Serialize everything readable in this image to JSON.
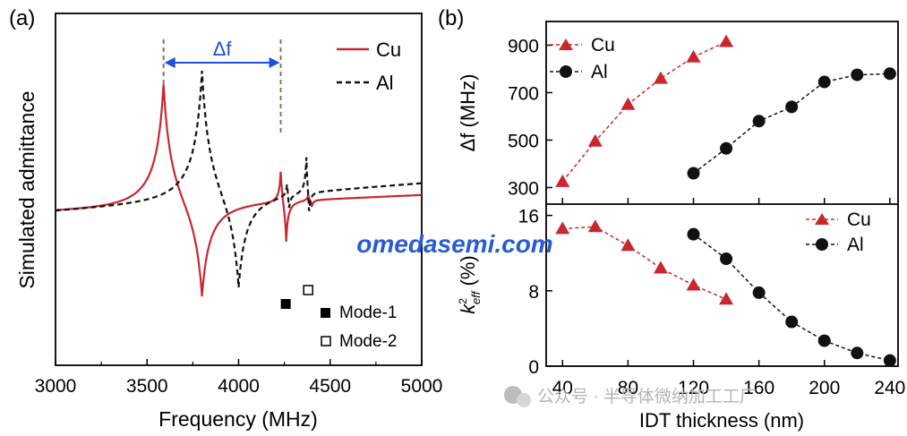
{
  "chart_data": [
    {
      "panel_label": "(a)",
      "type": "line",
      "xlabel": "Frequency (MHz)",
      "ylabel": "Simulated admittance",
      "xlim": [
        3000,
        5000
      ],
      "xticks": [
        "3000",
        "3500",
        "4000",
        "4500",
        "5000"
      ],
      "series": [
        {
          "name": "Cu",
          "color": "#c8282d",
          "style": "solid",
          "resonances": [
            {
              "fr": 3590,
              "fa": 3800,
              "peak": 0.33,
              "dip": -0.26,
              "k": 50,
              "dx": 40
            },
            {
              "fr": 4230,
              "fa": 4260,
              "peak": 0.1,
              "dip": -0.12,
              "k": 12,
              "dx": 12
            },
            {
              "fr": 4380,
              "fa": 4400,
              "peak": 0.02,
              "dip": -0.02,
              "k": 8,
              "dx": 8
            }
          ],
          "base_start": -0.01,
          "base_end": 0.03
        },
        {
          "name": "Al",
          "color": "#111111",
          "style": "dashed",
          "resonances": [
            {
              "fr": 3800,
              "fa": 4000,
              "peak": 0.35,
              "dip": -0.26,
              "k": 50,
              "dx": 40
            },
            {
              "fr": 4265,
              "fa": 4275,
              "peak": 0.06,
              "dip": -0.06,
              "k": 10,
              "dx": 10
            },
            {
              "fr": 4370,
              "fa": 4385,
              "peak": 0.12,
              "dip": -0.09,
              "k": 10,
              "dx": 10
            }
          ],
          "base_start": -0.01,
          "base_end": 0.06
        }
      ],
      "delta_label": "Δf",
      "delta_from": 3590,
      "delta_to": 4230,
      "markers": [
        {
          "label": "Mode-1",
          "fill": "filled",
          "x": 4255
        },
        {
          "label": "Mode-2",
          "fill": "open",
          "x": 4380
        }
      ]
    },
    {
      "panel_label": "(b)",
      "type": "line",
      "subplot": "top",
      "ylabel": "Δf (MHz)",
      "ylim": [
        230,
        1000
      ],
      "yticks": [
        300,
        500,
        700,
        900
      ],
      "xlim": [
        30,
        245
      ],
      "series": [
        {
          "name": "Cu",
          "marker": "triangle",
          "color": "#c8282d",
          "x": [
            40,
            60,
            80,
            100,
            120,
            140
          ],
          "y": [
            325,
            495,
            650,
            760,
            850,
            915
          ]
        },
        {
          "name": "Al",
          "marker": "circle",
          "color": "#111111",
          "x": [
            120,
            140,
            160,
            180,
            200,
            220,
            240
          ],
          "y": [
            360,
            465,
            580,
            640,
            745,
            775,
            780
          ]
        }
      ]
    },
    {
      "type": "line",
      "subplot": "bottom",
      "ylabel_prefix": "k",
      "ylabel_sup": "2",
      "ylabel_sub": "eff",
      "ylabel_unit": " (%)",
      "ylim": [
        0,
        17.2
      ],
      "yticks": [
        0,
        8,
        16
      ],
      "xlim": [
        30,
        245
      ],
      "xticks": [
        40,
        80,
        120,
        160,
        200,
        240
      ],
      "xlabel": "IDT thickness (nm)",
      "series": [
        {
          "name": "Cu",
          "marker": "triangle",
          "color": "#c8282d",
          "x": [
            40,
            60,
            80,
            100,
            120,
            140
          ],
          "y": [
            14.6,
            14.8,
            12.8,
            10.4,
            8.6,
            7.1
          ]
        },
        {
          "name": "Al",
          "marker": "circle",
          "color": "#111111",
          "x": [
            120,
            140,
            160,
            180,
            200,
            220,
            240
          ],
          "y": [
            14.0,
            11.4,
            7.8,
            4.7,
            2.7,
            1.4,
            0.6
          ]
        }
      ]
    }
  ],
  "watermark": "omedasemi.com",
  "wechat_caption": "公众号 · 半导体微纳加工工厂"
}
